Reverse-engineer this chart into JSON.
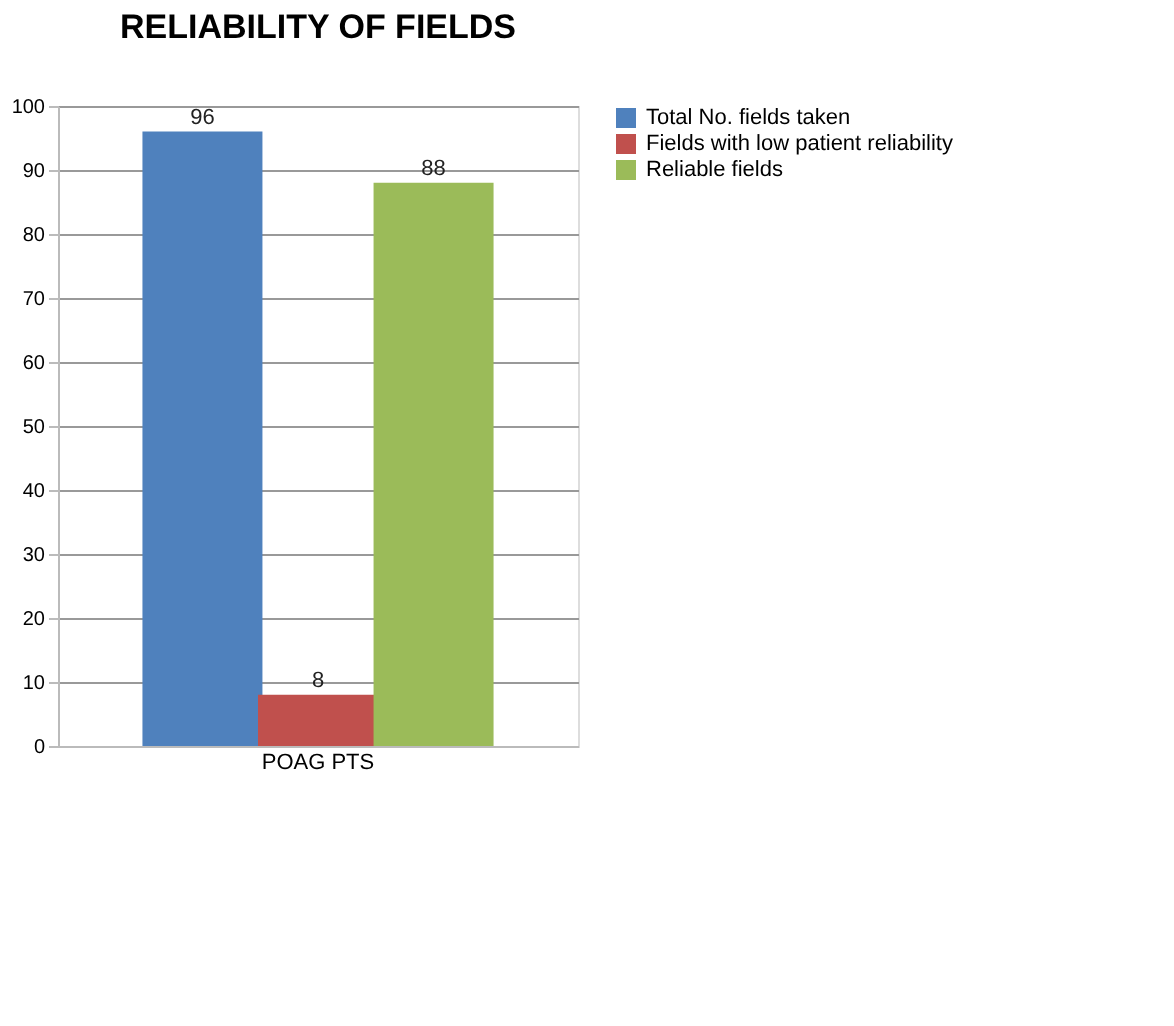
{
  "chart_data": {
    "type": "bar",
    "title": "RELIABILITY OF FIELDS",
    "categories": [
      "POAG PTS"
    ],
    "series": [
      {
        "name": "Total No. fields taken",
        "color": "#4f81bd",
        "values": [
          96
        ]
      },
      {
        "name": "Fields with low patient reliability",
        "color": "#c0504d",
        "values": [
          8
        ]
      },
      {
        "name": "Reliable fields",
        "color": "#9bbb59",
        "values": [
          88
        ]
      }
    ],
    "ylim": [
      0,
      100
    ],
    "yticks": [
      0,
      10,
      20,
      30,
      40,
      50,
      60,
      70,
      80,
      90,
      100
    ],
    "grid": "y",
    "legend": "right",
    "data_labels": true
  }
}
